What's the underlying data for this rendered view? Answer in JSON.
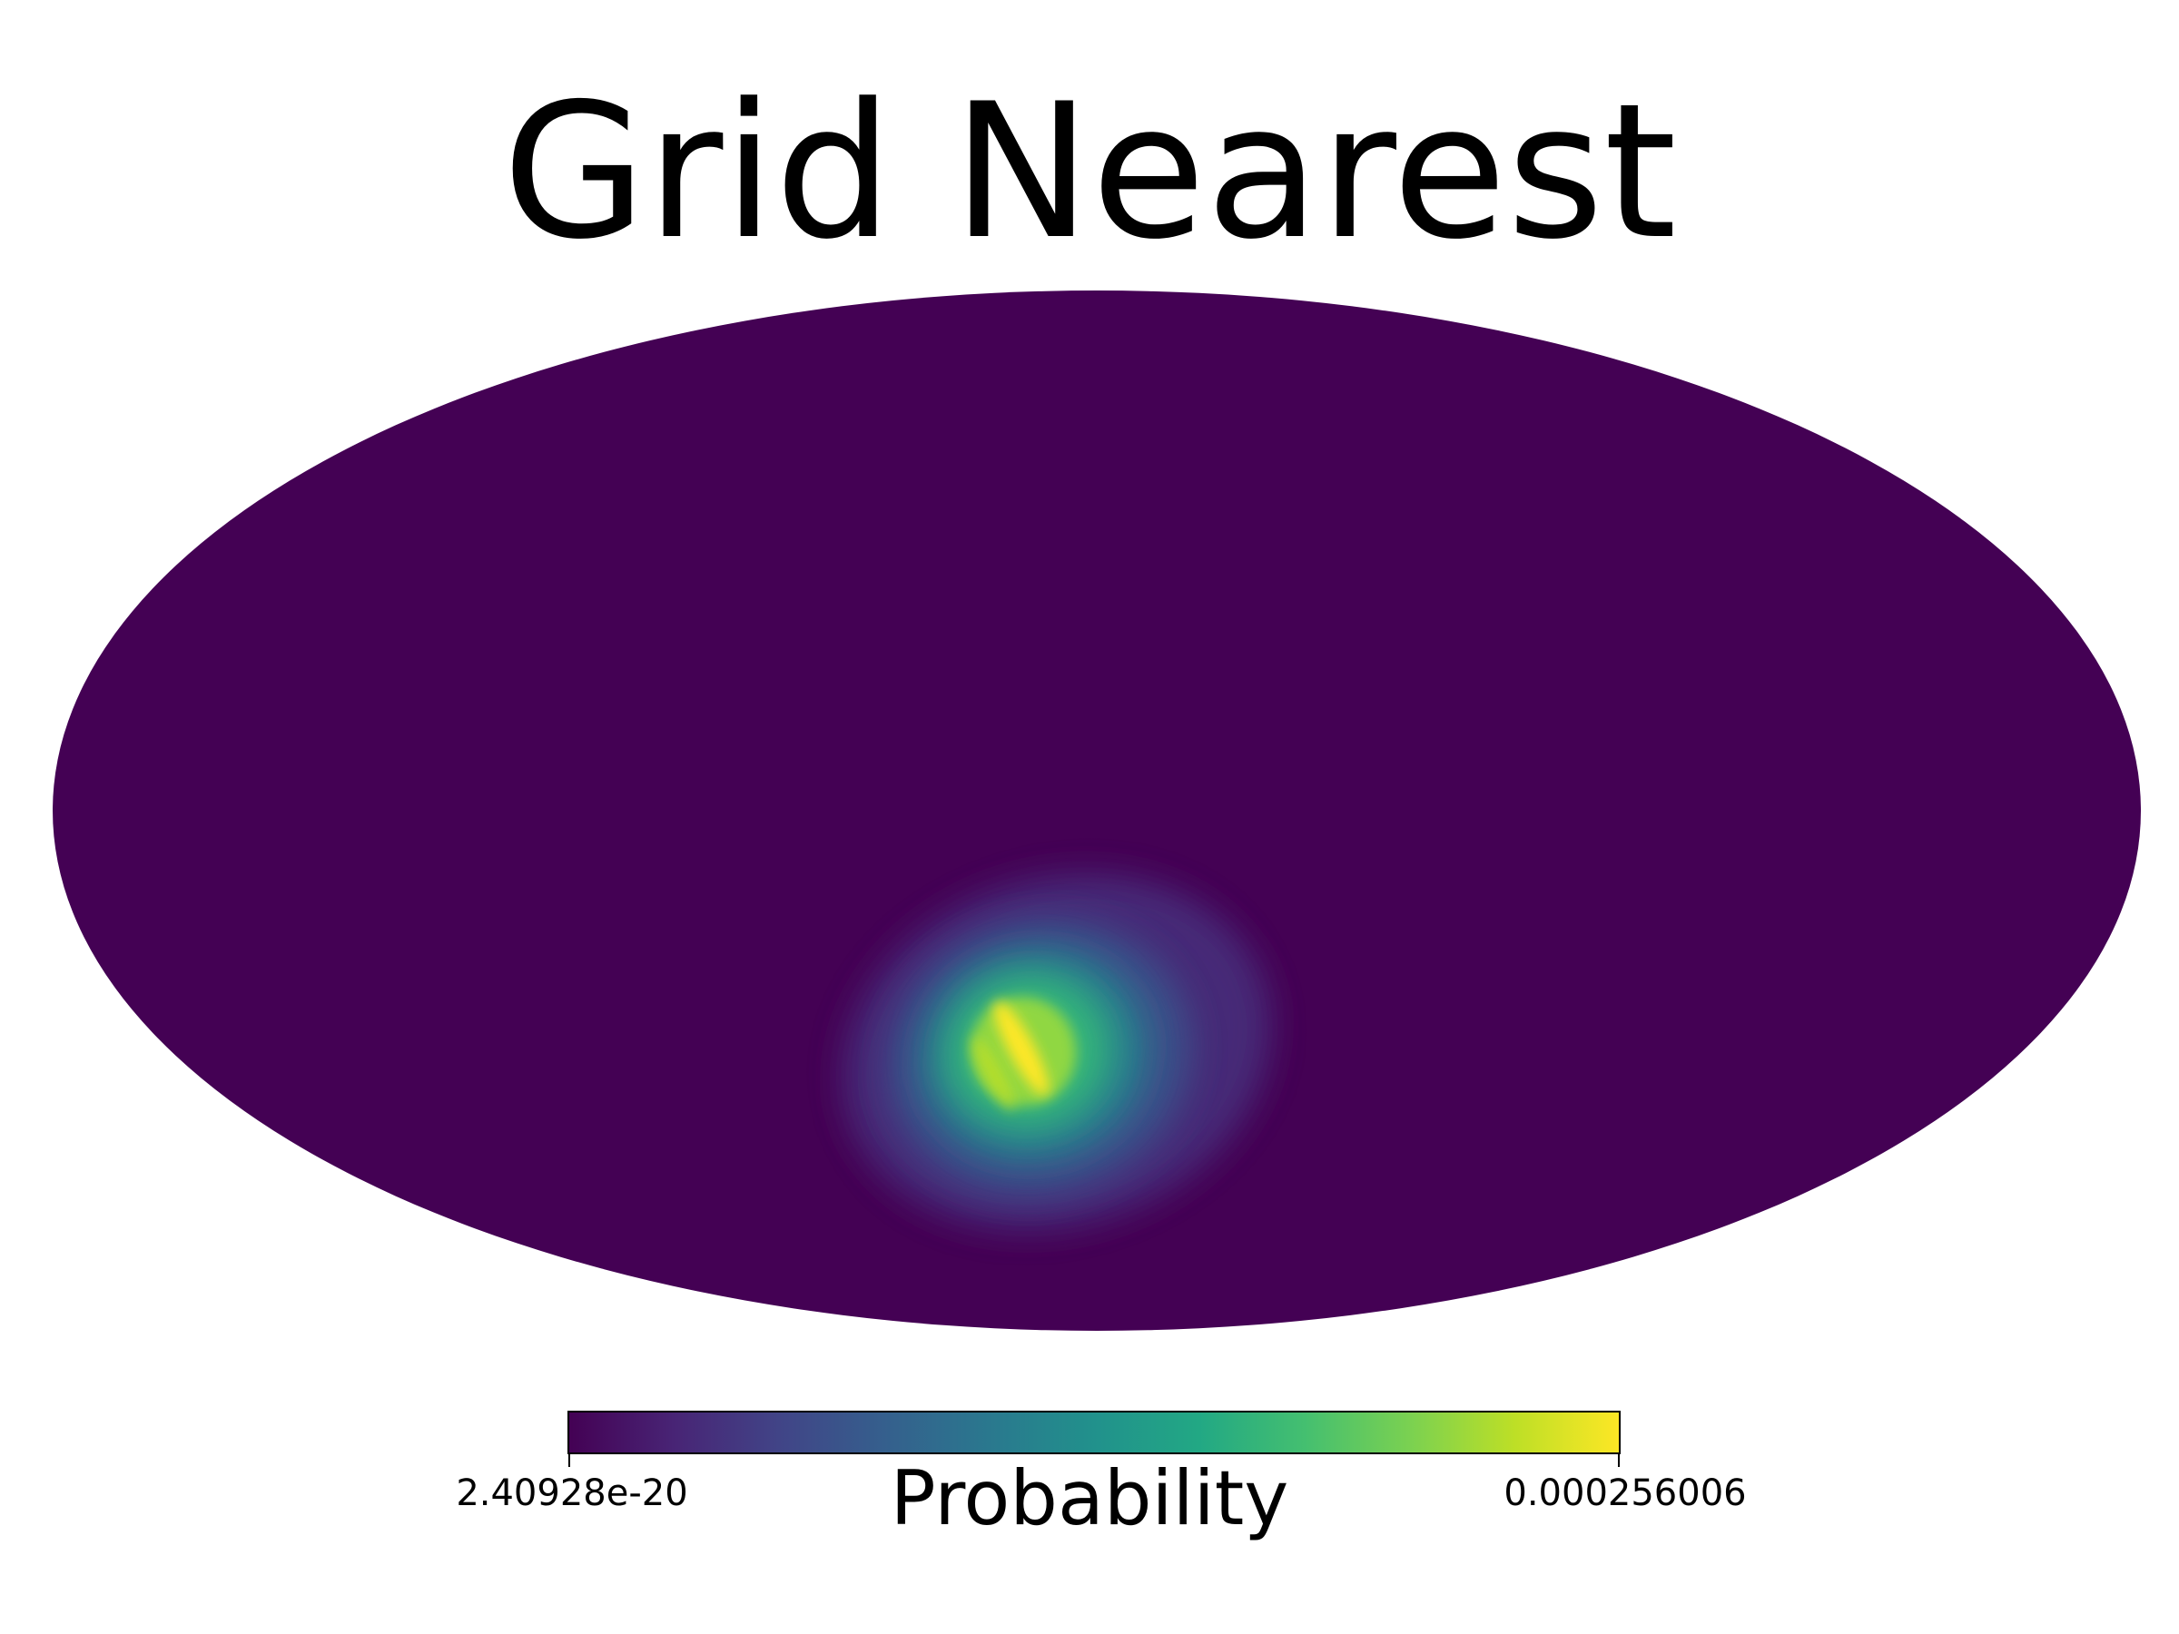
{
  "chart_data": {
    "type": "heatmap",
    "projection": "mollweide",
    "title": "Grid Nearest",
    "colormap": "viridis",
    "colorbar": {
      "label": "Probability",
      "min_label": "2.40928e-20",
      "max_label": "0.000256006",
      "min": 2.40928e-20,
      "max": 0.000256006,
      "orientation": "horizontal",
      "placement": "bottom"
    },
    "background_value": 2.40928e-20,
    "hotspot": {
      "description_free": true,
      "peak_value": 0.000256006,
      "center_lon_deg": 10,
      "center_lat_deg": -33,
      "extent_lon_deg": 30,
      "extent_lat_deg": 25,
      "grid_aligned": true
    },
    "grid": false,
    "legend": "none"
  }
}
